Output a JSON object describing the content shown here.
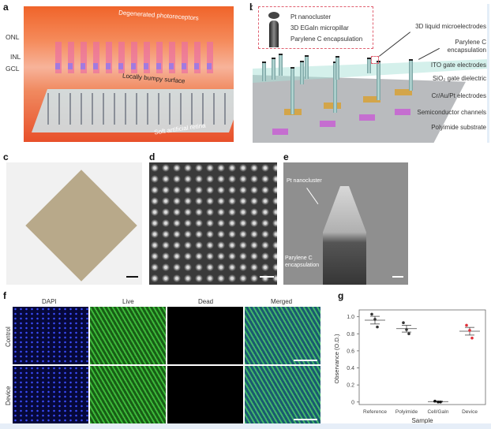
{
  "panel_labels": {
    "a": "a",
    "b": "b",
    "c": "c",
    "d": "d",
    "e": "e",
    "f": "f",
    "g": "g"
  },
  "panel_a": {
    "layers": [
      "ONL",
      "INL",
      "GCL"
    ],
    "annotations": {
      "top": "Degenerated photoreceptors",
      "middle": "Locally bumpy surface",
      "bottom": "Soft artificial retina"
    }
  },
  "panel_b": {
    "inset": [
      "Pt nanocluster",
      "3D EGaIn micropillar",
      "Parylene C encapsulation"
    ],
    "layers": [
      "3D liquid microelectrodes",
      "Parylene C encapsulation",
      "ITO gate electrodes",
      "SiO₂ gate dielectric",
      "Cr/Au/Pt electrodes",
      "Semiconductor channels",
      "Polyimide substrate"
    ]
  },
  "panel_e": {
    "labels": [
      "Pt nanocluster",
      "Parylene C encapsulation"
    ]
  },
  "panel_f": {
    "columns": [
      "DAPI",
      "Live",
      "Dead",
      "Merged"
    ],
    "rows": [
      "Control",
      "Device"
    ]
  },
  "chart_data": {
    "type": "scatter",
    "xlabel": "Sample",
    "ylabel": "Observance (O.D.)",
    "categories": [
      "Reference",
      "Polyimide",
      "Cell/GaIn",
      "Device"
    ],
    "ylim": [
      -0.03,
      1.08
    ],
    "yticks": [
      "0",
      "0.2",
      "0.4",
      "0.6",
      "0.8",
      "1.0"
    ],
    "series": [
      {
        "points": [
          [
            1.03,
            0.97,
            0.88
          ],
          [
            0.93,
            0.85,
            0.8
          ],
          [
            0.01,
            0.0,
            0.0
          ],
          [
            0.9,
            0.84,
            0.75
          ]
        ],
        "means": [
          0.96,
          0.86,
          0.005,
          0.83
        ],
        "errors": [
          0.045,
          0.04,
          0.005,
          0.045
        ]
      }
    ],
    "colors": [
      "#333333",
      "#333333",
      "#111111",
      "#e0303a"
    ],
    "grid": false
  }
}
